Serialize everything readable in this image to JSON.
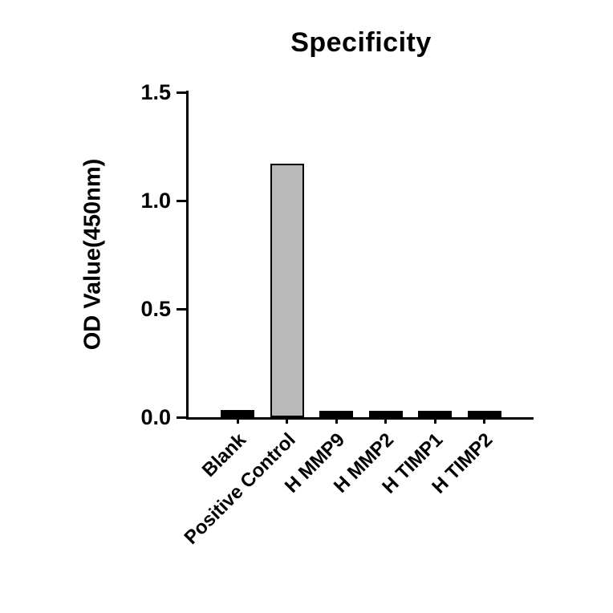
{
  "chart_data": {
    "type": "bar",
    "title": "Specificity",
    "xlabel": "",
    "ylabel": "OD Value(450nm)",
    "categories": [
      "Blank",
      "Positive Control",
      "H MMP9",
      "H MMP2",
      "H TIMP1",
      "H TIMP2"
    ],
    "values": [
      0.035,
      1.17,
      0.03,
      0.03,
      0.03,
      0.03
    ],
    "ylim": [
      0,
      1.5
    ],
    "yticks": [
      0,
      0.5,
      1.0,
      1.5
    ],
    "ytick_labels": [
      "0.0",
      "0.5",
      "1.0",
      "1.5"
    ],
    "bar_fill_colors": [
      "#000000",
      "#b9b9b9",
      "#000000",
      "#000000",
      "#000000",
      "#000000"
    ],
    "bar_border_color": "#000000",
    "axis_color": "#000000",
    "grid": false,
    "legend": null
  }
}
